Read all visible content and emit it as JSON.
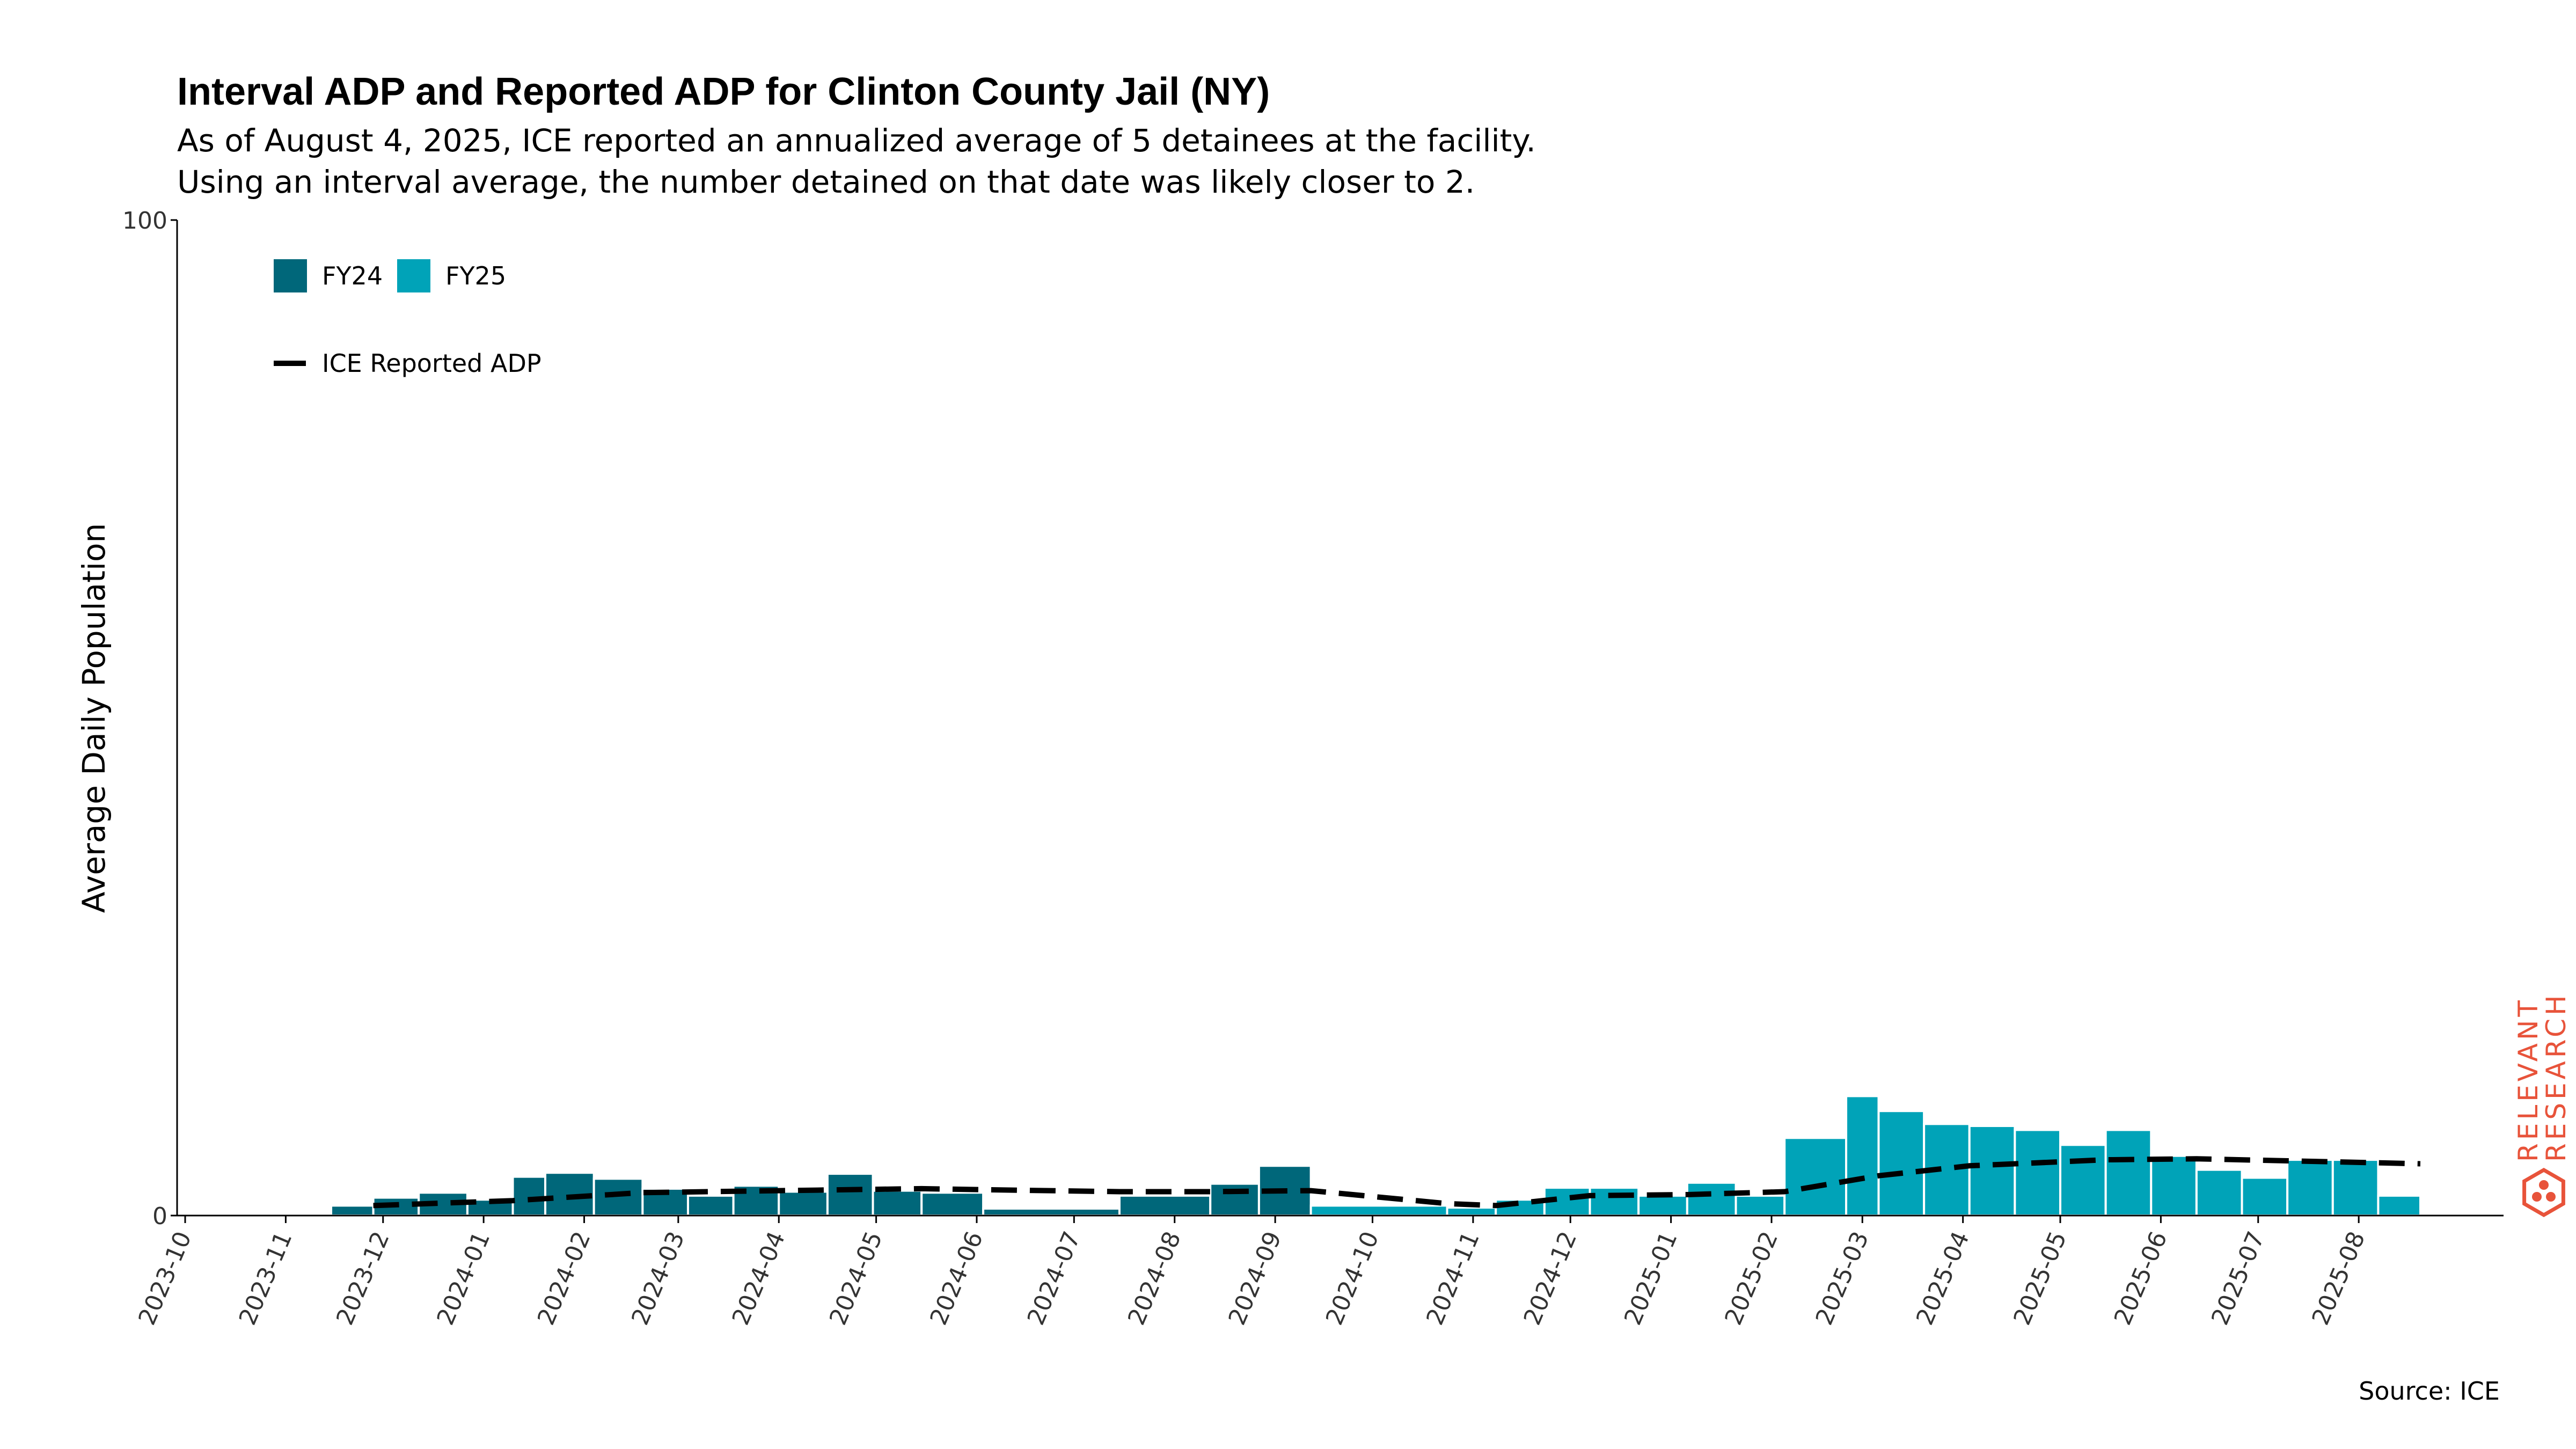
{
  "header": {
    "title": "Interval ADP and Reported ADP for Clinton County Jail (NY)",
    "subtitle_line1": "As of August 4, 2025, ICE reported an annualized average of 5 detainees at the facility.",
    "subtitle_line2": "Using an interval average, the number detained on that date was likely closer to 2."
  },
  "footer": {
    "source": "Source: ICE"
  },
  "logo": {
    "line1": "RELEVANT",
    "line2": "RESEARCH",
    "color": "#e8533a"
  },
  "colors": {
    "fy24": "#00677a",
    "fy25": "#00a3b8",
    "reported_line": "#000000"
  },
  "chart_data": {
    "type": "bar",
    "xlabel": "",
    "ylabel": "Average Daily Population",
    "ylim": [
      0,
      100
    ],
    "yticks": [
      0,
      100
    ],
    "x_start": "2023-10-01",
    "x_end": "2025-08-20",
    "xticks": [
      "2023-10",
      "2023-11",
      "2023-12",
      "2024-01",
      "2024-02",
      "2024-03",
      "2024-04",
      "2024-05",
      "2024-06",
      "2024-07",
      "2024-08",
      "2024-09",
      "2024-10",
      "2024-11",
      "2024-12",
      "2025-01",
      "2025-02",
      "2025-03",
      "2025-04",
      "2025-05",
      "2025-06",
      "2025-07",
      "2025-08"
    ],
    "legend": {
      "placement": "top-left",
      "entries": [
        "FY24",
        "FY25",
        "ICE Reported ADP"
      ]
    },
    "series": [
      {
        "name": "FY24",
        "color": "#00677a",
        "bars": [
          {
            "start": "2023-11-15",
            "end": "2023-11-28",
            "value": 1.0
          },
          {
            "start": "2023-11-28",
            "end": "2023-12-12",
            "value": 1.8
          },
          {
            "start": "2023-12-12",
            "end": "2023-12-27",
            "value": 2.3
          },
          {
            "start": "2023-12-27",
            "end": "2024-01-10",
            "value": 1.6
          },
          {
            "start": "2024-01-10",
            "end": "2024-01-20",
            "value": 3.9
          },
          {
            "start": "2024-01-20",
            "end": "2024-02-04",
            "value": 4.3
          },
          {
            "start": "2024-02-04",
            "end": "2024-02-19",
            "value": 3.7
          },
          {
            "start": "2024-02-19",
            "end": "2024-03-04",
            "value": 2.7
          },
          {
            "start": "2024-03-04",
            "end": "2024-03-18",
            "value": 2.0
          },
          {
            "start": "2024-03-18",
            "end": "2024-04-01",
            "value": 3.0
          },
          {
            "start": "2024-04-01",
            "end": "2024-04-16",
            "value": 2.4
          },
          {
            "start": "2024-04-16",
            "end": "2024-04-30",
            "value": 4.2
          },
          {
            "start": "2024-04-30",
            "end": "2024-05-15",
            "value": 2.5
          },
          {
            "start": "2024-05-15",
            "end": "2024-06-03",
            "value": 2.3
          },
          {
            "start": "2024-06-03",
            "end": "2024-07-15",
            "value": 0.7
          },
          {
            "start": "2024-07-15",
            "end": "2024-08-12",
            "value": 2.0
          },
          {
            "start": "2024-08-12",
            "end": "2024-08-27",
            "value": 3.2
          },
          {
            "start": "2024-08-27",
            "end": "2024-09-12",
            "value": 5.0
          }
        ]
      },
      {
        "name": "FY25",
        "color": "#00a3b8",
        "bars": [
          {
            "start": "2024-09-12",
            "end": "2024-10-24",
            "value": 1.0
          },
          {
            "start": "2024-10-24",
            "end": "2024-11-08",
            "value": 0.8
          },
          {
            "start": "2024-11-08",
            "end": "2024-11-23",
            "value": 1.6
          },
          {
            "start": "2024-11-23",
            "end": "2024-12-07",
            "value": 2.8
          },
          {
            "start": "2024-12-07",
            "end": "2024-12-22",
            "value": 2.8
          },
          {
            "start": "2024-12-22",
            "end": "2025-01-06",
            "value": 2.0
          },
          {
            "start": "2025-01-06",
            "end": "2025-01-21",
            "value": 3.3
          },
          {
            "start": "2025-01-21",
            "end": "2025-02-05",
            "value": 2.0
          },
          {
            "start": "2025-02-05",
            "end": "2025-02-24",
            "value": 7.8
          },
          {
            "start": "2025-02-24",
            "end": "2025-03-06",
            "value": 12.0
          },
          {
            "start": "2025-03-06",
            "end": "2025-03-20",
            "value": 10.5
          },
          {
            "start": "2025-03-20",
            "end": "2025-04-03",
            "value": 9.2
          },
          {
            "start": "2025-04-03",
            "end": "2025-04-17",
            "value": 9.0
          },
          {
            "start": "2025-04-17",
            "end": "2025-05-01",
            "value": 8.6
          },
          {
            "start": "2025-05-01",
            "end": "2025-05-15",
            "value": 7.1
          },
          {
            "start": "2025-05-15",
            "end": "2025-05-29",
            "value": 8.6
          },
          {
            "start": "2025-05-29",
            "end": "2025-06-12",
            "value": 6.0
          },
          {
            "start": "2025-06-12",
            "end": "2025-06-26",
            "value": 4.6
          },
          {
            "start": "2025-06-26",
            "end": "2025-07-10",
            "value": 3.8
          },
          {
            "start": "2025-07-10",
            "end": "2025-07-24",
            "value": 5.6
          },
          {
            "start": "2025-07-24",
            "end": "2025-08-07",
            "value": 5.6
          },
          {
            "start": "2025-08-07",
            "end": "2025-08-20",
            "value": 2.0
          }
        ]
      },
      {
        "name": "ICE Reported ADP",
        "type": "line",
        "style": "dashed",
        "color": "#000000",
        "points": [
          {
            "x": "2023-11-28",
            "y": 1.0
          },
          {
            "x": "2024-01-10",
            "y": 1.5
          },
          {
            "x": "2024-02-19",
            "y": 2.3
          },
          {
            "x": "2024-04-01",
            "y": 2.5
          },
          {
            "x": "2024-05-15",
            "y": 2.7
          },
          {
            "x": "2024-06-03",
            "y": 2.6
          },
          {
            "x": "2024-07-15",
            "y": 2.4
          },
          {
            "x": "2024-08-12",
            "y": 2.4
          },
          {
            "x": "2024-09-12",
            "y": 2.5
          },
          {
            "x": "2024-10-24",
            "y": 1.2
          },
          {
            "x": "2024-11-08",
            "y": 1.0
          },
          {
            "x": "2024-12-07",
            "y": 2.0
          },
          {
            "x": "2025-01-06",
            "y": 2.1
          },
          {
            "x": "2025-02-05",
            "y": 2.4
          },
          {
            "x": "2025-03-06",
            "y": 4.0
          },
          {
            "x": "2025-04-03",
            "y": 5.0
          },
          {
            "x": "2025-05-15",
            "y": 5.6
          },
          {
            "x": "2025-06-12",
            "y": 5.7
          },
          {
            "x": "2025-07-10",
            "y": 5.5
          },
          {
            "x": "2025-08-07",
            "y": 5.3
          },
          {
            "x": "2025-08-20",
            "y": 5.2
          }
        ]
      }
    ]
  }
}
